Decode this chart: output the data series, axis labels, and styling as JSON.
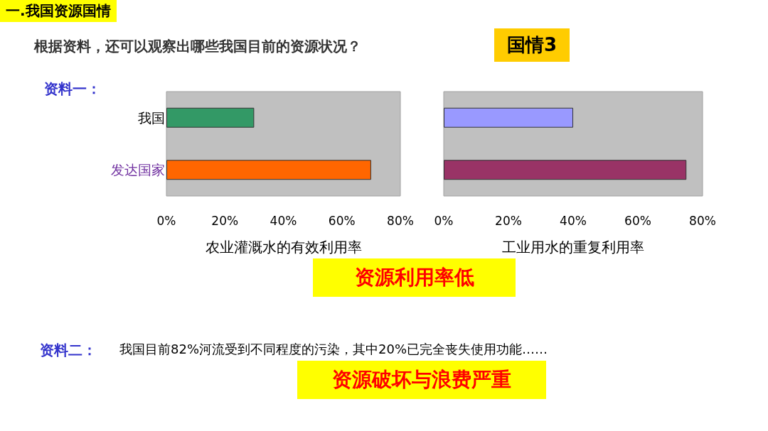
{
  "chart_data": [
    {
      "type": "bar",
      "orientation": "horizontal",
      "categories": [
        "我国",
        "发达国家"
      ],
      "values": [
        30,
        70
      ],
      "colors": [
        "#339966",
        "#ff6600"
      ],
      "xlabel": "农业灌溉水的有效利用率",
      "xlim": [
        0,
        80
      ],
      "xticks": [
        {
          "value": 0,
          "label": "0%"
        },
        {
          "value": 20,
          "label": "20%"
        },
        {
          "value": 40,
          "label": "40%"
        },
        {
          "value": 60,
          "label": "60%"
        },
        {
          "value": 80,
          "label": "80%"
        }
      ],
      "grid": false,
      "annotations": [
        "一.我国资源国情",
        "根据资料，还可以观察出哪些我国目前的资源状况？",
        "国情3",
        "资料一：",
        "资源利用率低"
      ]
    },
    {
      "type": "bar",
      "orientation": "horizontal",
      "categories": [
        null,
        null
      ],
      "values": [
        40,
        75
      ],
      "colors": [
        "#9999ff",
        "#993366"
      ],
      "xlabel": "工业用水的重复利用率",
      "xlim": [
        0,
        80
      ],
      "xticks": [
        {
          "value": 0,
          "label": "0%"
        },
        {
          "value": 20,
          "label": "20%"
        },
        {
          "value": 40,
          "label": "40%"
        },
        {
          "value": 60,
          "label": "60%"
        },
        {
          "value": 80,
          "label": "80%"
        }
      ],
      "grid": false,
      "annotations": [
        "资料二：",
        "我国目前82%河流受到不同程度的污染，其中20%已完全丧失使用功能……",
        "资源破坏与浪费严重"
      ]
    }
  ]
}
